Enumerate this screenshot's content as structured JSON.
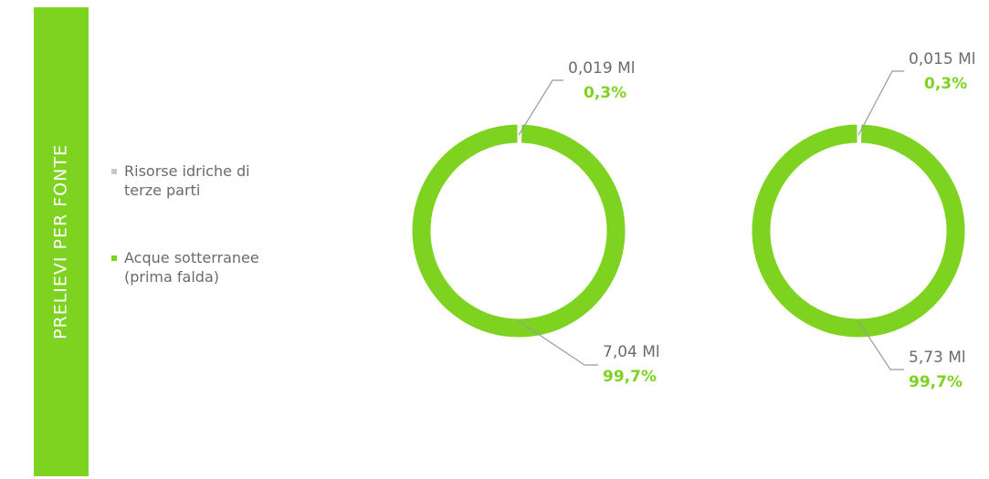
{
  "chart_data": {
    "type": "donut",
    "title": "PRELIEVI PER FONTE",
    "categories": [
      "Risorse idriche di terze parti",
      "Acque sotterranee (prima falda)"
    ],
    "colors": [
      "#c8c8c8",
      "#7ed321"
    ],
    "series": [
      {
        "values": [
          0.019,
          7.04
        ],
        "value_labels": [
          "0,019 Ml",
          "7,04 Ml"
        ],
        "shares": [
          0.3,
          99.7
        ],
        "share_labels": [
          "0,3%",
          "99,7%"
        ]
      },
      {
        "values": [
          0.015,
          5.73
        ],
        "value_labels": [
          "0,015 Ml",
          "5,73 Ml"
        ],
        "shares": [
          0.3,
          99.7
        ],
        "share_labels": [
          "0,3%",
          "99,7%"
        ]
      }
    ]
  }
}
